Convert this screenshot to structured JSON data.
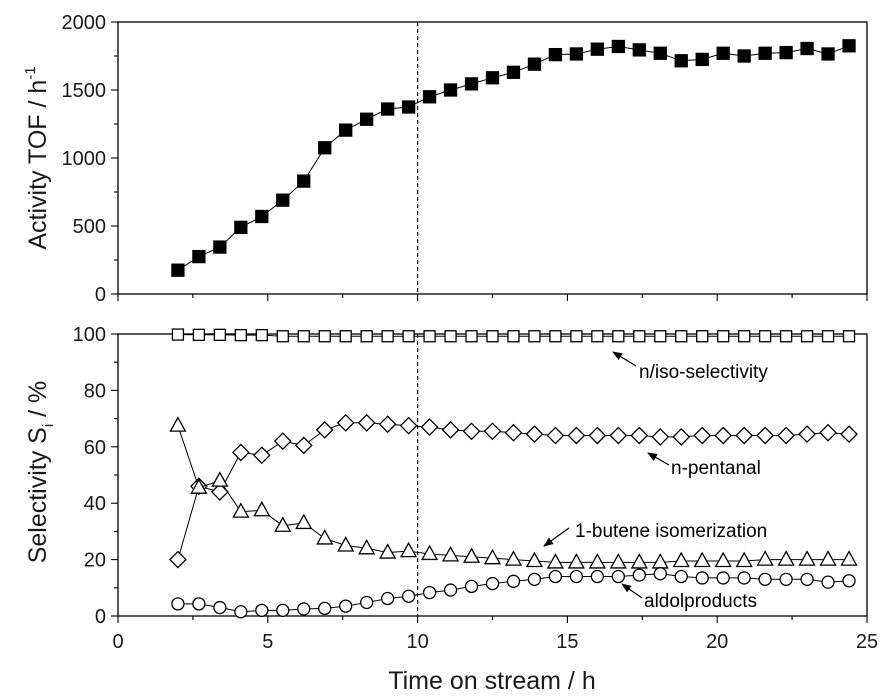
{
  "chart_data": [
    {
      "type": "line",
      "panel": "top",
      "ylabel_main": "Activity TOF / h",
      "ylabel_sup": "-1",
      "ylim": [
        0,
        2000
      ],
      "yticks": [
        0,
        500,
        1000,
        1500,
        2000
      ],
      "xlim": [
        0,
        25
      ],
      "reference_x": 10,
      "series": [
        {
          "marker": "filled-square",
          "x": [
            2.0,
            2.7,
            3.4,
            4.1,
            4.8,
            5.5,
            6.2,
            6.9,
            7.6,
            8.3,
            9.0,
            9.7,
            10.4,
            11.1,
            11.8,
            12.5,
            13.2,
            13.9,
            14.6,
            15.3,
            16.0,
            16.7,
            17.4,
            18.1,
            18.8,
            19.5,
            20.2,
            20.9,
            21.6,
            22.3,
            23.0,
            23.7,
            24.4
          ],
          "y": [
            175,
            275,
            345,
            490,
            570,
            690,
            830,
            1075,
            1205,
            1285,
            1360,
            1375,
            1450,
            1500,
            1545,
            1590,
            1630,
            1690,
            1760,
            1765,
            1800,
            1820,
            1795,
            1770,
            1715,
            1725,
            1770,
            1750,
            1770,
            1775,
            1805,
            1765,
            1825
          ]
        }
      ]
    },
    {
      "type": "line",
      "panel": "bottom",
      "xlabel": "Time on stream / h",
      "ylabel_main": "Selectivity S",
      "ylabel_sub": "i",
      "ylabel_tail": " / %",
      "ylim": [
        0,
        100
      ],
      "yticks": [
        0,
        20,
        40,
        60,
        80,
        100
      ],
      "xlim": [
        0,
        25
      ],
      "xticks": [
        0,
        5,
        10,
        15,
        20,
        25
      ],
      "reference_x": 10,
      "series": [
        {
          "name": "n/iso-selectivity",
          "marker": "open-square",
          "x": [
            2.0,
            2.7,
            3.4,
            4.1,
            4.8,
            5.5,
            6.2,
            6.9,
            7.6,
            8.3,
            9.0,
            9.7,
            10.4,
            11.1,
            11.8,
            12.5,
            13.2,
            13.9,
            14.6,
            15.3,
            16.0,
            16.7,
            17.4,
            18.1,
            18.8,
            19.5,
            20.2,
            20.9,
            21.6,
            22.3,
            23.0,
            23.7,
            24.4
          ],
          "y": [
            99.8,
            99.7,
            99.7,
            99.6,
            99.6,
            99.2,
            99.2,
            99.2,
            99.2,
            99.2,
            99.2,
            99.2,
            99.2,
            99.2,
            99.2,
            99.2,
            99.2,
            99.2,
            99.2,
            99.2,
            99.2,
            99.2,
            99.2,
            99.2,
            99.2,
            99.2,
            99.2,
            99.2,
            99.2,
            99.2,
            99.2,
            99.2,
            99.2
          ]
        },
        {
          "name": "n-pentanal",
          "marker": "open-diamond",
          "x": [
            2.0,
            2.7,
            3.4,
            4.1,
            4.8,
            5.5,
            6.2,
            6.9,
            7.6,
            8.3,
            9.0,
            9.7,
            10.4,
            11.1,
            11.8,
            12.5,
            13.2,
            13.9,
            14.6,
            15.3,
            16.0,
            16.7,
            17.4,
            18.1,
            18.8,
            19.5,
            20.2,
            20.9,
            21.6,
            22.3,
            23.0,
            23.7,
            24.4
          ],
          "y": [
            20,
            46,
            44,
            58,
            57,
            62,
            60.5,
            66,
            68.5,
            68.5,
            68,
            67.5,
            67,
            66,
            65.5,
            65.5,
            65,
            64.5,
            64,
            64,
            64,
            64,
            64,
            63.5,
            63.5,
            64,
            64,
            64,
            64,
            64,
            64.5,
            65,
            64.5
          ]
        },
        {
          "name": "1-butene isomerization",
          "marker": "open-triangle",
          "x": [
            2.0,
            2.7,
            3.4,
            4.1,
            4.8,
            5.5,
            6.2,
            6.9,
            7.6,
            8.3,
            9.0,
            9.7,
            10.4,
            11.1,
            11.8,
            12.5,
            13.2,
            13.9,
            14.6,
            15.3,
            16.0,
            16.7,
            17.4,
            18.1,
            18.8,
            19.5,
            20.2,
            20.9,
            21.6,
            22.3,
            23.0,
            23.7,
            24.4
          ],
          "y": [
            67.5,
            45.5,
            48,
            37,
            37.5,
            32,
            33,
            27.5,
            25,
            24,
            22.5,
            23,
            22,
            21.5,
            21,
            20.5,
            20,
            19.5,
            19,
            19,
            19,
            19,
            19,
            19,
            19.5,
            19.5,
            19.5,
            19.5,
            20,
            20,
            20,
            20,
            20
          ]
        },
        {
          "name": "aldolproducts",
          "marker": "open-circle",
          "x": [
            2.0,
            2.7,
            3.4,
            4.1,
            4.8,
            5.5,
            6.2,
            6.9,
            7.6,
            8.3,
            9.0,
            9.7,
            10.4,
            11.1,
            11.8,
            12.5,
            13.2,
            13.9,
            14.6,
            15.3,
            16.0,
            16.7,
            17.4,
            18.1,
            18.8,
            19.5,
            20.2,
            20.9,
            21.6,
            22.3,
            23.0,
            23.7,
            24.4
          ],
          "y": [
            4.3,
            4.3,
            3.0,
            1.5,
            2.0,
            2.0,
            2.5,
            2.7,
            3.5,
            4.8,
            6.2,
            7.0,
            8.3,
            9.2,
            10.5,
            11.5,
            12.3,
            13.0,
            14.0,
            14.0,
            14.0,
            14.0,
            14.5,
            15.0,
            14.0,
            13.5,
            13.5,
            13.5,
            13.0,
            13.0,
            13.0,
            12.0,
            12.5
          ]
        }
      ]
    }
  ]
}
